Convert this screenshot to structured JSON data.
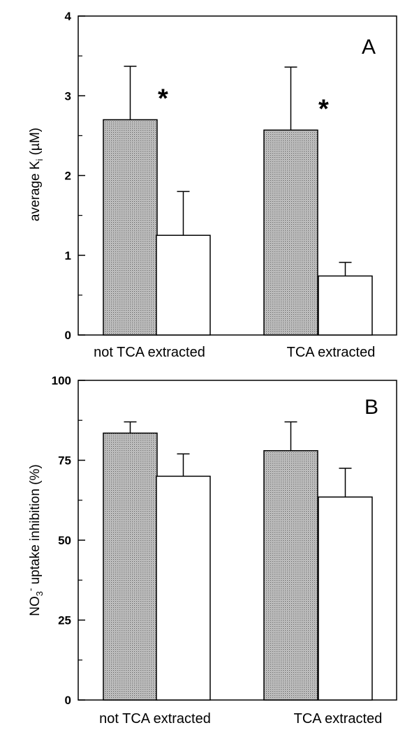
{
  "chart_data": [
    {
      "type": "bar",
      "panel": "A",
      "ylabel": "average K",
      "ylabel_sub": "i",
      "ylabel_unit": " (µM)",
      "categories": [
        "not TCA extracted",
        "TCA extracted"
      ],
      "ylim": [
        0,
        4
      ],
      "yticks": [
        0,
        1,
        2,
        3,
        4
      ],
      "yticks_text": [
        "0",
        "1",
        "2",
        "3",
        "4"
      ],
      "grid": false,
      "series": [
        {
          "values": [
            2.7,
            2.57
          ],
          "errors": [
            0.67,
            0.79
          ],
          "fill": "dotted-gray"
        },
        {
          "values": [
            1.25,
            0.74
          ],
          "errors": [
            0.55,
            0.17
          ],
          "fill": "white"
        }
      ],
      "annotations": [
        "*",
        "*"
      ]
    },
    {
      "type": "bar",
      "panel": "B",
      "ylabel": "NO",
      "ylabel_sub": "3",
      "ylabel_sup": "-",
      "ylabel_unit": " uptake inhibition (%)",
      "categories": [
        "not TCA extracted",
        "TCA extracted"
      ],
      "ylim": [
        0,
        100
      ],
      "yticks": [
        0,
        25,
        50,
        75,
        100
      ],
      "yticks_text": [
        "0",
        "25",
        "50",
        "75",
        "100"
      ],
      "grid": false,
      "series": [
        {
          "values": [
            83.5,
            78
          ],
          "errors": [
            3.5,
            9
          ],
          "fill": "dotted-gray"
        },
        {
          "values": [
            70,
            63.5
          ],
          "errors": [
            7,
            9
          ],
          "fill": "white"
        }
      ]
    }
  ]
}
